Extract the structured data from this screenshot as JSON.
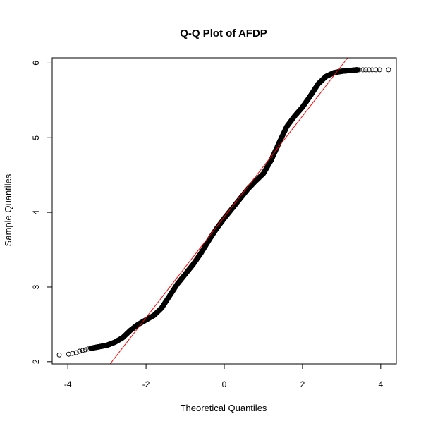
{
  "chart_data": {
    "type": "scatter",
    "title": "Q-Q Plot of AFDP",
    "xlabel": "Theoretical Quantiles",
    "ylabel": "Sample Quantiles",
    "xlim": [
      -4.4,
      4.4
    ],
    "ylim": [
      1.97,
      6.07
    ],
    "x_ticks": [
      -4,
      -2,
      0,
      2,
      4
    ],
    "y_ticks": [
      2,
      3,
      4,
      5,
      6
    ],
    "grid": false,
    "reference_line": {
      "color": "#ff0000",
      "slope": 0.675,
      "intercept": 3.94
    },
    "point_style": {
      "shape": "open-circle",
      "color": "#000000"
    },
    "curve": [
      [
        -4.22,
        2.09
      ],
      [
        -4.0,
        2.1
      ],
      [
        -3.8,
        2.12
      ],
      [
        -3.6,
        2.15
      ],
      [
        -3.4,
        2.18
      ],
      [
        -3.2,
        2.2
      ],
      [
        -3.0,
        2.22
      ],
      [
        -2.8,
        2.26
      ],
      [
        -2.6,
        2.32
      ],
      [
        -2.4,
        2.42
      ],
      [
        -2.2,
        2.5
      ],
      [
        -2.0,
        2.56
      ],
      [
        -1.8,
        2.62
      ],
      [
        -1.6,
        2.72
      ],
      [
        -1.4,
        2.88
      ],
      [
        -1.2,
        3.04
      ],
      [
        -1.0,
        3.17
      ],
      [
        -0.8,
        3.3
      ],
      [
        -0.6,
        3.45
      ],
      [
        -0.4,
        3.62
      ],
      [
        -0.2,
        3.78
      ],
      [
        0.0,
        3.92
      ],
      [
        0.2,
        4.05
      ],
      [
        0.4,
        4.18
      ],
      [
        0.6,
        4.31
      ],
      [
        0.8,
        4.42
      ],
      [
        1.0,
        4.52
      ],
      [
        1.2,
        4.7
      ],
      [
        1.4,
        4.93
      ],
      [
        1.6,
        5.15
      ],
      [
        1.8,
        5.29
      ],
      [
        2.0,
        5.41
      ],
      [
        2.2,
        5.56
      ],
      [
        2.4,
        5.72
      ],
      [
        2.6,
        5.82
      ],
      [
        2.8,
        5.87
      ],
      [
        3.0,
        5.89
      ],
      [
        3.2,
        5.9
      ],
      [
        3.4,
        5.91
      ],
      [
        3.6,
        5.91
      ],
      [
        3.8,
        5.91
      ],
      [
        3.95,
        5.91
      ],
      [
        4.2,
        5.91
      ]
    ],
    "sparse_points": [
      [
        -4.22,
        2.09
      ],
      [
        -3.98,
        2.1
      ],
      [
        -3.88,
        2.11
      ],
      [
        -3.78,
        2.12
      ],
      [
        -3.7,
        2.14
      ],
      [
        -3.62,
        2.15
      ],
      [
        -3.55,
        2.16
      ],
      [
        -3.48,
        2.17
      ],
      [
        -3.42,
        2.18
      ],
      [
        3.45,
        5.91
      ],
      [
        3.55,
        5.91
      ],
      [
        3.62,
        5.91
      ],
      [
        3.7,
        5.91
      ],
      [
        3.78,
        5.91
      ],
      [
        3.88,
        5.91
      ],
      [
        3.97,
        5.91
      ],
      [
        4.2,
        5.91
      ]
    ]
  }
}
